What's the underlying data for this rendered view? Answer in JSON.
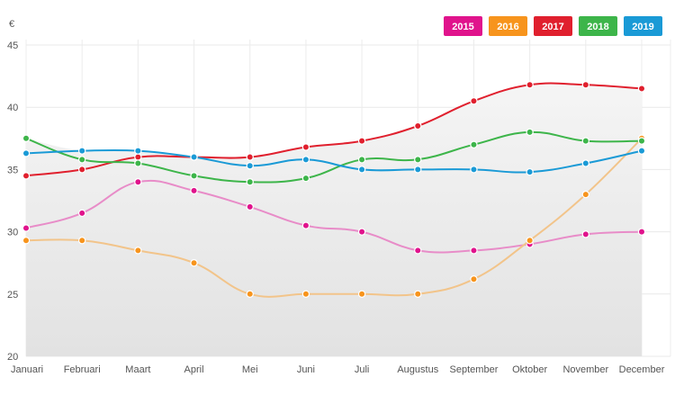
{
  "chart_data": {
    "type": "line",
    "unit_label": "€",
    "categories": [
      "Januari",
      "Februari",
      "Maart",
      "April",
      "Mei",
      "Juni",
      "Juli",
      "Augustus",
      "September",
      "Oktober",
      "November",
      "December"
    ],
    "ylim": [
      20,
      45
    ],
    "yticks": [
      20,
      25,
      30,
      35,
      40,
      45
    ],
    "grid": true,
    "legend_position": "top-right",
    "series": [
      {
        "name": "2015",
        "color": "#e0138c",
        "line_color": "#e88cc8",
        "values": [
          30.3,
          31.5,
          34.0,
          33.3,
          32.0,
          30.5,
          30.0,
          28.5,
          28.5,
          29.0,
          29.8,
          30.0
        ]
      },
      {
        "name": "2016",
        "color": "#f7941d",
        "line_color": "#f2c48a",
        "values": [
          29.3,
          29.3,
          28.5,
          27.5,
          25.0,
          25.0,
          25.0,
          25.0,
          26.2,
          29.3,
          33.0,
          37.5
        ]
      },
      {
        "name": "2017",
        "color": "#e0202e",
        "line_color": "#e0202e",
        "values": [
          34.5,
          35.0,
          36.0,
          36.0,
          36.0,
          36.8,
          37.3,
          38.5,
          40.5,
          41.8,
          41.8,
          41.5
        ]
      },
      {
        "name": "2018",
        "color": "#3db54a",
        "line_color": "#3db54a",
        "values": [
          37.5,
          35.8,
          35.5,
          34.5,
          34.0,
          34.3,
          35.8,
          35.8,
          37.0,
          38.0,
          37.3,
          37.3
        ]
      },
      {
        "name": "2019",
        "color": "#1a9ad6",
        "line_color": "#1a9ad6",
        "values": [
          36.3,
          36.5,
          36.5,
          36.0,
          35.3,
          35.8,
          35.0,
          35.0,
          35.0,
          34.8,
          35.5,
          36.5
        ]
      }
    ]
  }
}
